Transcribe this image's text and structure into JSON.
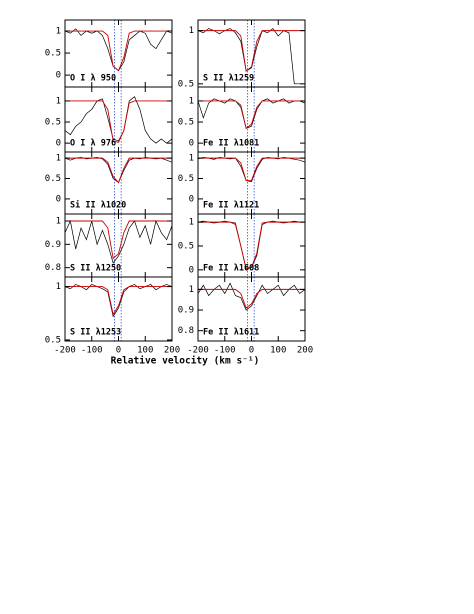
{
  "figure": {
    "xlabel": "Relative velocity (km s⁻¹)",
    "vlines": [
      -15,
      10
    ]
  },
  "chart_data": [
    {
      "type": "line",
      "label": "O I λ 950",
      "x": [
        -200,
        -180,
        -160,
        -140,
        -120,
        -100,
        -80,
        -60,
        -40,
        -20,
        0,
        20,
        40,
        60,
        80,
        100,
        120,
        140,
        160,
        180,
        200
      ],
      "xlim": [
        -200,
        200
      ],
      "xticks": [
        -200,
        -100,
        0,
        100,
        200
      ],
      "ylim": [
        -0.27,
        1.25
      ],
      "yticks": [
        0,
        0.5,
        1
      ],
      "series": [
        {
          "color": "#000000",
          "values": [
            1.0,
            0.95,
            1.05,
            0.9,
            1.0,
            0.95,
            1.0,
            0.9,
            0.6,
            0.2,
            0.1,
            0.3,
            0.8,
            0.9,
            1.0,
            0.95,
            0.7,
            0.6,
            0.8,
            1.0,
            0.95
          ]
        },
        {
          "color": "#cc0000",
          "values": [
            1,
            1,
            1,
            1,
            1,
            1,
            1,
            1,
            0.9,
            0.2,
            0.1,
            0.4,
            0.95,
            1,
            1,
            1,
            1,
            1,
            1,
            1,
            1
          ]
        }
      ]
    },
    {
      "type": "line",
      "label": "S II λ1259",
      "x": [
        -200,
        -180,
        -160,
        -140,
        -120,
        -100,
        -80,
        -60,
        -40,
        -20,
        0,
        20,
        40,
        60,
        80,
        100,
        120,
        140,
        160,
        180,
        200
      ],
      "xlim": [
        -200,
        200
      ],
      "xticks": [
        -200,
        -100,
        0,
        100,
        200
      ],
      "ylim": [
        0.47,
        1.1
      ],
      "yticks": [
        0.5,
        1
      ],
      "series": [
        {
          "color": "#000000",
          "values": [
            1.0,
            0.98,
            1.02,
            1.0,
            0.97,
            1.0,
            1.02,
            0.98,
            0.9,
            0.62,
            0.65,
            0.85,
            1.0,
            0.98,
            1.02,
            0.95,
            1.0,
            0.98,
            0.5,
            0.5,
            0.5
          ]
        },
        {
          "color": "#cc0000",
          "values": [
            1,
            1,
            1,
            1,
            1,
            1,
            1,
            1,
            0.95,
            0.62,
            0.66,
            0.9,
            1,
            1,
            1,
            1,
            1,
            1,
            1,
            1,
            1
          ]
        }
      ]
    },
    {
      "type": "line",
      "label": "O I λ 976",
      "x": [
        -200,
        -180,
        -160,
        -140,
        -120,
        -100,
        -80,
        -60,
        -40,
        -20,
        0,
        20,
        40,
        60,
        80,
        100,
        120,
        140,
        160,
        180,
        200
      ],
      "xlim": [
        -200,
        200
      ],
      "xticks": [
        -200,
        -100,
        0,
        100,
        200
      ],
      "ylim": [
        -0.21,
        1.33
      ],
      "yticks": [
        0,
        0.5,
        1
      ],
      "series": [
        {
          "color": "#000000",
          "values": [
            0.3,
            0.2,
            0.4,
            0.5,
            0.7,
            0.8,
            1.0,
            1.05,
            0.6,
            0.1,
            0.05,
            0.3,
            1.0,
            1.1,
            0.8,
            0.3,
            0.1,
            0.0,
            0.1,
            0.0,
            0.1
          ]
        },
        {
          "color": "#cc0000",
          "values": [
            1,
            1,
            1,
            1,
            1,
            1,
            1,
            1,
            0.8,
            0.05,
            0.02,
            0.3,
            0.95,
            1,
            1,
            1,
            1,
            1,
            1,
            1,
            1
          ]
        }
      ]
    },
    {
      "type": "line",
      "label": "Fe II λ1081",
      "x": [
        -200,
        -180,
        -160,
        -140,
        -120,
        -100,
        -80,
        -60,
        -40,
        -20,
        0,
        20,
        40,
        60,
        80,
        100,
        120,
        140,
        160,
        180,
        200
      ],
      "xlim": [
        -200,
        200
      ],
      "xticks": [
        -200,
        -100,
        0,
        100,
        200
      ],
      "ylim": [
        -0.21,
        1.33
      ],
      "yticks": [
        0,
        0.5,
        1
      ],
      "series": [
        {
          "color": "#000000",
          "values": [
            1,
            0.6,
            0.95,
            1.05,
            1,
            0.95,
            1.05,
            1,
            0.85,
            0.35,
            0.4,
            0.8,
            1,
            1.05,
            0.95,
            1.0,
            1.05,
            0.95,
            1,
            1.0,
            0.95
          ]
        },
        {
          "color": "#cc0000",
          "values": [
            1,
            1,
            1,
            1,
            1,
            1,
            1,
            1,
            0.9,
            0.35,
            0.45,
            0.85,
            1,
            1,
            1,
            1,
            1,
            1,
            1,
            1,
            1
          ]
        }
      ]
    },
    {
      "type": "line",
      "label": "Si II λ1020",
      "x": [
        -200,
        -180,
        -160,
        -140,
        -120,
        -100,
        -80,
        -60,
        -40,
        -20,
        0,
        20,
        40,
        60,
        80,
        100,
        120,
        140,
        160,
        180,
        200
      ],
      "xlim": [
        -200,
        200
      ],
      "xticks": [
        -200,
        -100,
        0,
        100,
        200
      ],
      "ylim": [
        -0.37,
        1.15
      ],
      "yticks": [
        0,
        0.5,
        1
      ],
      "series": [
        {
          "color": "#000000",
          "values": [
            1,
            0.95,
            1.0,
            1.02,
            0.98,
            1,
            1.02,
            0.98,
            0.85,
            0.5,
            0.4,
            0.7,
            0.95,
            1,
            0.98,
            1.02,
            1,
            0.98,
            1,
            0.95,
            0.9
          ]
        },
        {
          "color": "#cc0000",
          "values": [
            1,
            1,
            1,
            1,
            1,
            1,
            1,
            1,
            0.9,
            0.55,
            0.4,
            0.75,
            1,
            1,
            1,
            1,
            1,
            1,
            1,
            1,
            1
          ]
        }
      ]
    },
    {
      "type": "line",
      "label": "Fe II λ1121",
      "x": [
        -200,
        -180,
        -160,
        -140,
        -120,
        -100,
        -80,
        -60,
        -40,
        -20,
        0,
        20,
        40,
        60,
        80,
        100,
        120,
        140,
        160,
        180,
        200
      ],
      "xlim": [
        -200,
        200
      ],
      "xticks": [
        -200,
        -100,
        0,
        100,
        200
      ],
      "ylim": [
        -0.37,
        1.15
      ],
      "yticks": [
        0,
        0.5,
        1
      ],
      "series": [
        {
          "color": "#000000",
          "values": [
            0.98,
            1.02,
            1,
            0.97,
            1.02,
            1,
            0.98,
            1.0,
            0.8,
            0.45,
            0.42,
            0.75,
            0.97,
            1.02,
            1,
            0.98,
            1.02,
            1,
            0.97,
            0.95,
            0.9
          ]
        },
        {
          "color": "#cc0000",
          "values": [
            1,
            1,
            1,
            1,
            1,
            1,
            1,
            1,
            0.88,
            0.45,
            0.45,
            0.8,
            1,
            1,
            1,
            1,
            1,
            1,
            1,
            1,
            1
          ]
        }
      ]
    },
    {
      "type": "line",
      "label": "S II λ1250",
      "x": [
        -200,
        -180,
        -160,
        -140,
        -120,
        -100,
        -80,
        -60,
        -40,
        -20,
        0,
        20,
        40,
        60,
        80,
        100,
        120,
        140,
        160,
        180,
        200
      ],
      "xlim": [
        -200,
        200
      ],
      "xticks": [
        -200,
        -100,
        0,
        100,
        200
      ],
      "ylim": [
        0.76,
        1.03
      ],
      "yticks": [
        0.8,
        0.9,
        1
      ],
      "series": [
        {
          "color": "#000000",
          "values": [
            0.95,
            1.0,
            0.88,
            0.97,
            0.92,
            1.0,
            0.9,
            0.96,
            0.9,
            0.82,
            0.85,
            0.9,
            0.97,
            1.0,
            0.93,
            0.98,
            0.9,
            1.0,
            0.95,
            0.92,
            0.98
          ]
        },
        {
          "color": "#cc0000",
          "values": [
            1,
            1,
            1,
            1,
            1,
            1,
            1,
            1,
            0.97,
            0.84,
            0.86,
            0.95,
            1,
            1,
            1,
            1,
            1,
            1,
            1,
            1,
            1
          ]
        }
      ]
    },
    {
      "type": "line",
      "label": "Fe II λ1608",
      "x": [
        -200,
        -180,
        -160,
        -140,
        -120,
        -100,
        -80,
        -60,
        -40,
        -20,
        0,
        20,
        40,
        60,
        80,
        100,
        120,
        140,
        160,
        180,
        200
      ],
      "xlim": [
        -200,
        200
      ],
      "xticks": [
        -200,
        -100,
        0,
        100,
        200
      ],
      "ylim": [
        -0.15,
        1.17
      ],
      "yticks": [
        0,
        0.5,
        1
      ],
      "series": [
        {
          "color": "#000000",
          "values": [
            1,
            1.02,
            1,
            0.98,
            1,
            1.02,
            1,
            0.98,
            0.5,
            0.02,
            0.05,
            0.3,
            0.95,
            1,
            1.02,
            1,
            0.98,
            1,
            1.02,
            1,
            1
          ]
        },
        {
          "color": "#cc0000",
          "values": [
            1,
            1,
            1,
            1,
            1,
            1,
            1,
            0.95,
            0.5,
            0.02,
            0.05,
            0.35,
            0.98,
            1,
            1,
            1,
            1,
            1,
            1,
            1,
            1
          ]
        }
      ]
    },
    {
      "type": "line",
      "label": "S II λ1253",
      "x": [
        -200,
        -180,
        -160,
        -140,
        -120,
        -100,
        -80,
        -60,
        -40,
        -20,
        0,
        20,
        40,
        60,
        80,
        100,
        120,
        140,
        160,
        180,
        200
      ],
      "xlim": [
        -200,
        200
      ],
      "xticks": [
        -200,
        -100,
        0,
        100,
        200
      ],
      "ylim": [
        0.49,
        1.09
      ],
      "yticks": [
        0.5,
        1
      ],
      "series": [
        {
          "color": "#000000",
          "values": [
            1,
            0.98,
            1.02,
            1,
            0.97,
            1.02,
            1,
            0.98,
            0.95,
            0.72,
            0.8,
            0.95,
            1,
            1.02,
            0.98,
            1,
            1.02,
            0.97,
            1,
            1.02,
            1
          ]
        },
        {
          "color": "#cc0000",
          "values": [
            1,
            1,
            1,
            1,
            1,
            1,
            1,
            1,
            0.97,
            0.74,
            0.82,
            0.97,
            1,
            1,
            1,
            1,
            1,
            1,
            1,
            1,
            1
          ]
        }
      ]
    },
    {
      "type": "line",
      "label": "Fe II λ1611",
      "x": [
        -200,
        -180,
        -160,
        -140,
        -120,
        -100,
        -80,
        -60,
        -40,
        -20,
        0,
        20,
        40,
        60,
        80,
        100,
        120,
        140,
        160,
        180,
        200
      ],
      "xlim": [
        -200,
        200
      ],
      "xticks": [
        -200,
        -100,
        0,
        100,
        200
      ],
      "ylim": [
        0.75,
        1.06
      ],
      "yticks": [
        0.8,
        0.9,
        1
      ],
      "series": [
        {
          "color": "#000000",
          "values": [
            0.98,
            1.02,
            0.97,
            1.0,
            1.02,
            0.98,
            1.03,
            0.97,
            0.96,
            0.9,
            0.92,
            0.97,
            1.02,
            0.98,
            1.0,
            1.02,
            0.97,
            1.0,
            1.02,
            0.98,
            1.0
          ]
        },
        {
          "color": "#cc0000",
          "values": [
            1,
            1,
            1,
            1,
            1,
            1,
            1,
            1,
            0.98,
            0.91,
            0.93,
            0.98,
            1,
            1,
            1,
            1,
            1,
            1,
            1,
            1,
            1
          ]
        }
      ]
    }
  ]
}
